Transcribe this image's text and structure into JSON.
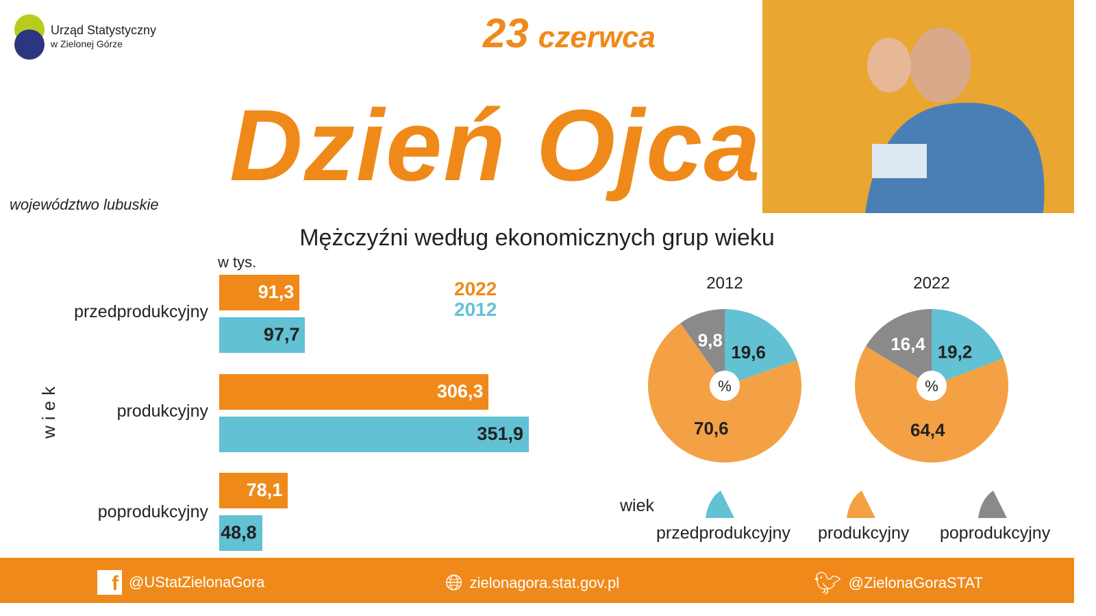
{
  "logo": {
    "line1": "Urząd Statystyczny",
    "line2": "w Zielonej Górze"
  },
  "date": {
    "day": "23",
    "month": "czerwca"
  },
  "title": "Dzień Ojca",
  "region": "województwo lubuskie",
  "colors": {
    "orange": "#ef8a1a",
    "pie_orange": "#f4a145",
    "blue": "#62c1d3",
    "gray": "#8a8a8a"
  },
  "chart_data": [
    {
      "type": "bar",
      "title": "Mężczyźni według ekonomicznych grup wieku",
      "unit": "w tys.",
      "ylabel": "wiek",
      "categories": [
        "przedprodukcyjny",
        "produkcyjny",
        "poprodukcyjny"
      ],
      "series": [
        {
          "name": "2022",
          "values": [
            91.3,
            306.3,
            78.1
          ],
          "labels": [
            "91,3",
            "306,3",
            "78,1"
          ]
        },
        {
          "name": "2012",
          "values": [
            97.7,
            351.9,
            48.8
          ],
          "labels": [
            "97,7",
            "351,9",
            "48,8"
          ]
        }
      ]
    },
    {
      "type": "pie",
      "title": "2012",
      "unit": "%",
      "categories": [
        "przedprodukcyjny",
        "produkcyjny",
        "poprodukcyjny"
      ],
      "values": [
        19.6,
        70.6,
        9.8
      ],
      "labels": [
        "19,6",
        "70,6",
        "9,8"
      ]
    },
    {
      "type": "pie",
      "title": "2022",
      "unit": "%",
      "categories": [
        "przedprodukcyjny",
        "produkcyjny",
        "poprodukcyjny"
      ],
      "values": [
        19.2,
        64.4,
        16.4
      ],
      "labels": [
        "19,2",
        "64,4",
        "16,4"
      ]
    }
  ],
  "pie_legend": {
    "title": "wiek",
    "items": [
      "przedprodukcyjny",
      "produkcyjny",
      "poprodukcyjny"
    ]
  },
  "footer": {
    "facebook": "@UStatZielonaGora",
    "website": "zielonagora.stat.gov.pl",
    "twitter": "@ZielonaGoraSTAT"
  }
}
